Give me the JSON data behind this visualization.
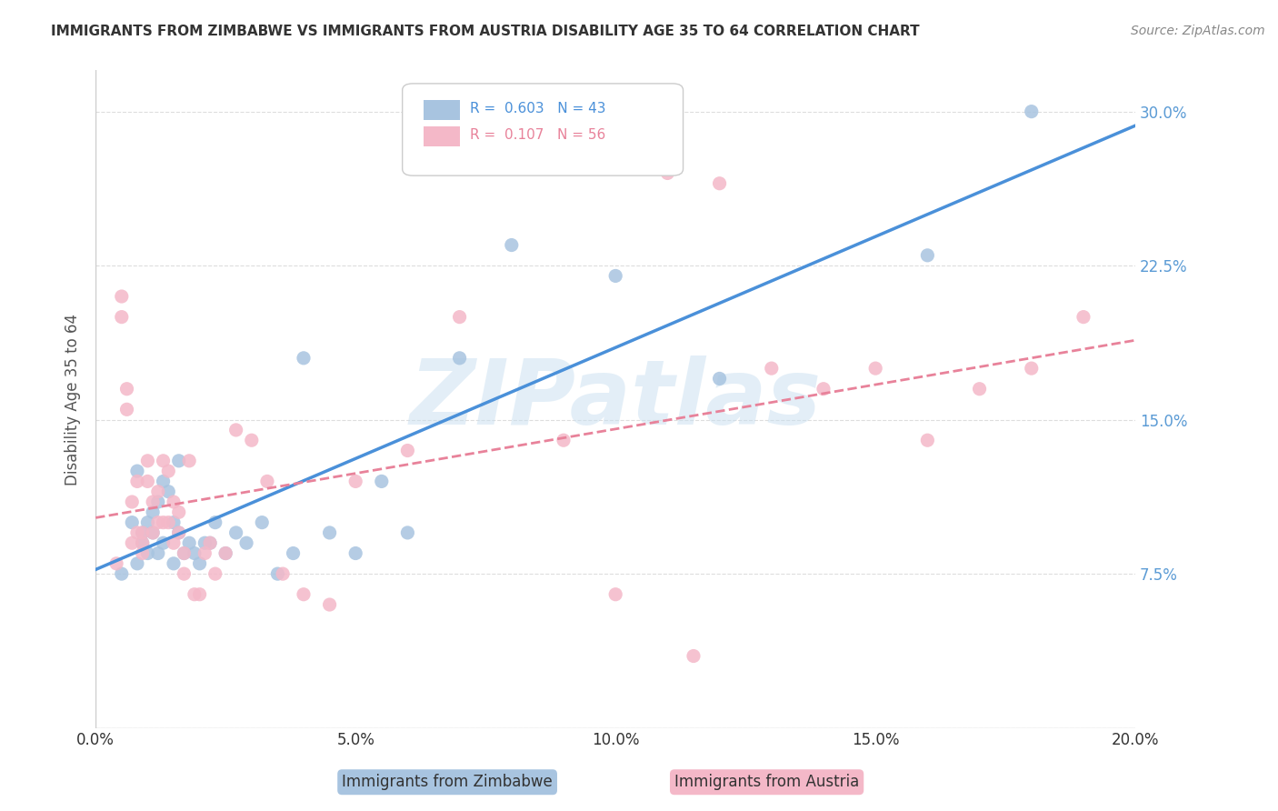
{
  "title": "IMMIGRANTS FROM ZIMBABWE VS IMMIGRANTS FROM AUSTRIA DISABILITY AGE 35 TO 64 CORRELATION CHART",
  "source": "Source: ZipAtlas.com",
  "xlabel": "",
  "ylabel": "Disability Age 35 to 64",
  "xlim": [
    0.0,
    0.2
  ],
  "ylim": [
    0.0,
    0.32
  ],
  "yticks": [
    0.0,
    0.075,
    0.15,
    0.225,
    0.3
  ],
  "ytick_labels": [
    "",
    "7.5%",
    "15.0%",
    "22.5%",
    "30.0%"
  ],
  "xticks": [
    0.0,
    0.05,
    0.1,
    0.15,
    0.2
  ],
  "xtick_labels": [
    "0.0%",
    "5.0%",
    "10.0%",
    "15.0%",
    "20.0%"
  ],
  "legend_entries": [
    {
      "label": "Immigrants from Zimbabwe",
      "color": "#a8c4e0",
      "R": "0.603",
      "N": "43"
    },
    {
      "label": "Immigrants from Austria",
      "color": "#f4a7b9",
      "R": "0.107",
      "N": "56"
    }
  ],
  "zimbabwe_color": "#a8c4e0",
  "austria_color": "#f4b8c8",
  "zimbabwe_line_color": "#4a90d9",
  "austria_line_color": "#e8829a",
  "background_color": "#ffffff",
  "grid_color": "#dddddd",
  "title_color": "#333333",
  "axis_label_color": "#555555",
  "ytick_color": "#5b9bd5",
  "source_color": "#888888",
  "watermark_color": "#c8dff0",
  "watermark_text": "ZIPatlas",
  "zimbabwe_x": [
    0.005,
    0.007,
    0.008,
    0.008,
    0.009,
    0.009,
    0.01,
    0.01,
    0.011,
    0.011,
    0.012,
    0.012,
    0.013,
    0.013,
    0.014,
    0.015,
    0.015,
    0.016,
    0.016,
    0.017,
    0.018,
    0.019,
    0.02,
    0.021,
    0.022,
    0.023,
    0.025,
    0.027,
    0.029,
    0.032,
    0.035,
    0.038,
    0.04,
    0.045,
    0.05,
    0.055,
    0.06,
    0.07,
    0.08,
    0.1,
    0.12,
    0.16,
    0.18
  ],
  "zimbabwe_y": [
    0.075,
    0.1,
    0.125,
    0.08,
    0.09,
    0.095,
    0.085,
    0.1,
    0.095,
    0.105,
    0.11,
    0.085,
    0.12,
    0.09,
    0.115,
    0.1,
    0.08,
    0.13,
    0.095,
    0.085,
    0.09,
    0.085,
    0.08,
    0.09,
    0.09,
    0.1,
    0.085,
    0.095,
    0.09,
    0.1,
    0.075,
    0.085,
    0.18,
    0.095,
    0.085,
    0.12,
    0.095,
    0.18,
    0.235,
    0.22,
    0.17,
    0.23,
    0.3
  ],
  "austria_x": [
    0.004,
    0.005,
    0.005,
    0.006,
    0.006,
    0.007,
    0.007,
    0.008,
    0.008,
    0.009,
    0.009,
    0.009,
    0.01,
    0.01,
    0.011,
    0.011,
    0.012,
    0.012,
    0.013,
    0.013,
    0.014,
    0.014,
    0.015,
    0.015,
    0.016,
    0.016,
    0.017,
    0.017,
    0.018,
    0.019,
    0.02,
    0.021,
    0.022,
    0.023,
    0.025,
    0.027,
    0.03,
    0.033,
    0.036,
    0.04,
    0.045,
    0.05,
    0.06,
    0.07,
    0.09,
    0.1,
    0.11,
    0.12,
    0.13,
    0.14,
    0.15,
    0.16,
    0.17,
    0.18,
    0.19,
    0.115
  ],
  "austria_y": [
    0.08,
    0.2,
    0.21,
    0.155,
    0.165,
    0.09,
    0.11,
    0.095,
    0.12,
    0.085,
    0.09,
    0.095,
    0.12,
    0.13,
    0.095,
    0.11,
    0.1,
    0.115,
    0.1,
    0.13,
    0.1,
    0.125,
    0.11,
    0.09,
    0.095,
    0.105,
    0.075,
    0.085,
    0.13,
    0.065,
    0.065,
    0.085,
    0.09,
    0.075,
    0.085,
    0.145,
    0.14,
    0.12,
    0.075,
    0.065,
    0.06,
    0.12,
    0.135,
    0.2,
    0.14,
    0.065,
    0.27,
    0.265,
    0.175,
    0.165,
    0.175,
    0.14,
    0.165,
    0.175,
    0.2,
    0.035
  ]
}
